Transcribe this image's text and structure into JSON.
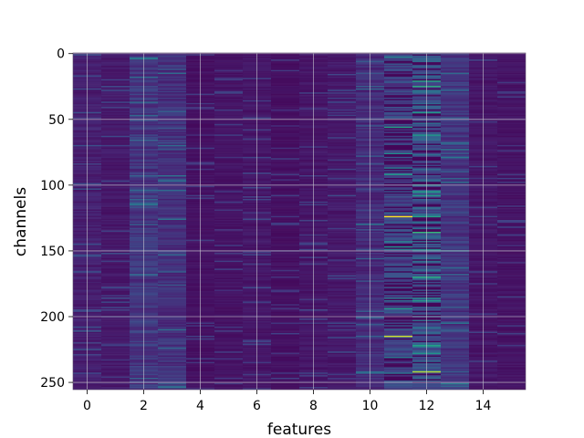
{
  "chart_data": {
    "type": "heatmap",
    "title": "",
    "xlabel": "features",
    "ylabel": "channels",
    "xlim": [
      -0.5,
      15.5
    ],
    "ylim": [
      255.5,
      -0.5
    ],
    "y_inverted": true,
    "n_features": 16,
    "n_channels": 256,
    "x_ticks": [
      0,
      2,
      4,
      6,
      8,
      10,
      12,
      14
    ],
    "x_tick_labels": [
      "0",
      "2",
      "4",
      "6",
      "8",
      "10",
      "12",
      "14"
    ],
    "y_ticks": [
      0,
      50,
      100,
      150,
      200,
      250
    ],
    "y_tick_labels": [
      "0",
      "50",
      "100",
      "150",
      "200",
      "250"
    ],
    "grid": true,
    "colormap": "viridis",
    "colors": {
      "background_low": "#440154",
      "plot_low": "#46237a",
      "mid": "#3b528b",
      "teal": "#21918c",
      "green": "#5ec962",
      "high": "#fde725",
      "grid": "#c8c8d0"
    },
    "column_profile": [
      0.1,
      0.08,
      0.18,
      0.16,
      0.05,
      0.06,
      0.07,
      0.05,
      0.07,
      0.08,
      0.14,
      0.22,
      0.3,
      0.18,
      0.07,
      0.06
    ],
    "highlights": [
      {
        "feature": 11,
        "channel": 124,
        "value": 1.0
      },
      {
        "feature": 11,
        "channel": 215,
        "value": 0.95
      },
      {
        "feature": 12,
        "channel": 242,
        "value": 0.92
      },
      {
        "feature": 11,
        "channel": 56,
        "value": 0.65
      },
      {
        "feature": 11,
        "channel": 92,
        "value": 0.6
      },
      {
        "feature": 11,
        "channel": 147,
        "value": 0.55
      },
      {
        "feature": 11,
        "channel": 194,
        "value": 0.6
      },
      {
        "feature": 12,
        "channel": 25,
        "value": 0.7
      },
      {
        "feature": 12,
        "channel": 62,
        "value": 0.6
      },
      {
        "feature": 12,
        "channel": 100,
        "value": 0.55
      },
      {
        "feature": 12,
        "channel": 108,
        "value": 0.6
      },
      {
        "feature": 12,
        "channel": 124,
        "value": 0.65
      },
      {
        "feature": 12,
        "channel": 136,
        "value": 0.75
      },
      {
        "feature": 12,
        "channel": 170,
        "value": 0.7
      },
      {
        "feature": 12,
        "channel": 188,
        "value": 0.6
      },
      {
        "feature": 12,
        "channel": 222,
        "value": 0.65
      },
      {
        "feature": 10,
        "channel": 130,
        "value": 0.45
      },
      {
        "feature": 3,
        "channel": 70,
        "value": 0.4
      },
      {
        "feature": 2,
        "channel": 168,
        "value": 0.4
      }
    ]
  }
}
